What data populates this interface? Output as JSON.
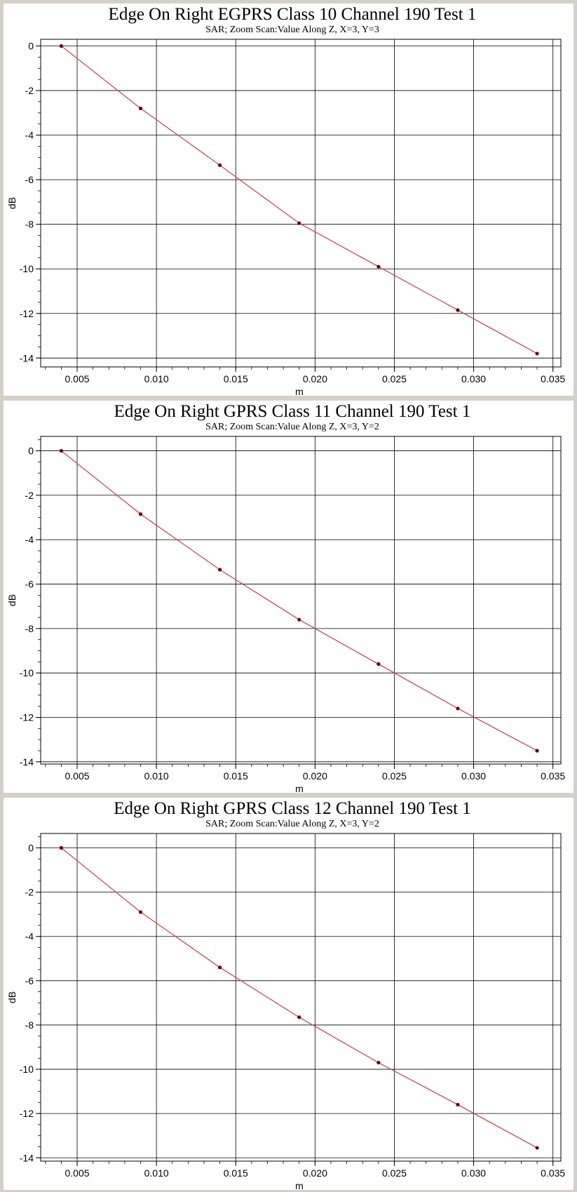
{
  "chart_data": [
    {
      "type": "line",
      "title": "Edge On Right EGPRS Class 10 Channel 190 Test 1",
      "subtitle": "SAR; Zoom Scan:Value Along Z, X=3, Y=3",
      "xlabel": "m",
      "ylabel": "dB",
      "xlim": [
        0.0027,
        0.0355
      ],
      "ylim": [
        -14.4,
        0.3
      ],
      "xticks": [
        0.005,
        0.01,
        0.015,
        0.02,
        0.025,
        0.03,
        0.035
      ],
      "xtick_labels": [
        "0.005",
        "0.010",
        "0.015",
        "0.020",
        "0.025",
        "0.030",
        "0.035"
      ],
      "yticks": [
        0,
        -2,
        -4,
        -6,
        -8,
        -10,
        -12,
        -14
      ],
      "ytick_labels": [
        "0",
        "-2",
        "-4",
        "-6",
        "-8",
        "-10",
        "-12",
        "-14"
      ],
      "grid": true,
      "line_color": "#c0504d",
      "marker_color": "#6b0000",
      "x": [
        0.004,
        0.009,
        0.014,
        0.019,
        0.024,
        0.029,
        0.034
      ],
      "y": [
        0,
        -2.8,
        -5.35,
        -7.95,
        -9.9,
        -11.85,
        -13.8
      ]
    },
    {
      "type": "line",
      "title": "Edge On Right GPRS Class 11 Channel 190 Test 1",
      "subtitle": "SAR; Zoom Scan:Value Along Z, X=3, Y=2",
      "xlabel": "m",
      "ylabel": "dB",
      "xlim": [
        0.0027,
        0.0355
      ],
      "ylim": [
        -14.1,
        0.65
      ],
      "xticks": [
        0.005,
        0.01,
        0.015,
        0.02,
        0.025,
        0.03,
        0.035
      ],
      "xtick_labels": [
        "0.005",
        "0.010",
        "0.015",
        "0.020",
        "0.025",
        "0.030",
        "0.035"
      ],
      "yticks": [
        0,
        -2,
        -4,
        -6,
        -8,
        -10,
        -12,
        -14
      ],
      "ytick_labels": [
        "0",
        "-2",
        "-4",
        "-6",
        "-8",
        "-10",
        "-12",
        "-14"
      ],
      "grid": true,
      "line_color": "#c0504d",
      "marker_color": "#6b0000",
      "x": [
        0.004,
        0.009,
        0.014,
        0.019,
        0.024,
        0.029,
        0.034
      ],
      "y": [
        0,
        -2.85,
        -5.35,
        -7.6,
        -9.6,
        -11.6,
        -13.5
      ]
    },
    {
      "type": "line",
      "title": "Edge On Right GPRS Class 12 Channel 190 Test 1",
      "subtitle": "SAR; Zoom Scan:Value Along Z, X=3, Y=2",
      "xlabel": "m",
      "ylabel": "dB",
      "xlim": [
        0.0027,
        0.0355
      ],
      "ylim": [
        -14.15,
        0.65
      ],
      "xticks": [
        0.005,
        0.01,
        0.015,
        0.02,
        0.025,
        0.03,
        0.035
      ],
      "xtick_labels": [
        "0.005",
        "0.010",
        "0.015",
        "0.020",
        "0.025",
        "0.030",
        "0.035"
      ],
      "yticks": [
        0,
        -2,
        -4,
        -6,
        -8,
        -10,
        -12,
        -14
      ],
      "ytick_labels": [
        "0",
        "-2",
        "-4",
        "-6",
        "-8",
        "-10",
        "-12",
        "-14"
      ],
      "grid": true,
      "line_color": "#c0504d",
      "marker_color": "#6b0000",
      "x": [
        0.004,
        0.009,
        0.014,
        0.019,
        0.024,
        0.029,
        0.034
      ],
      "y": [
        0,
        -2.9,
        -5.4,
        -7.65,
        -9.7,
        -11.6,
        -13.55
      ]
    }
  ]
}
